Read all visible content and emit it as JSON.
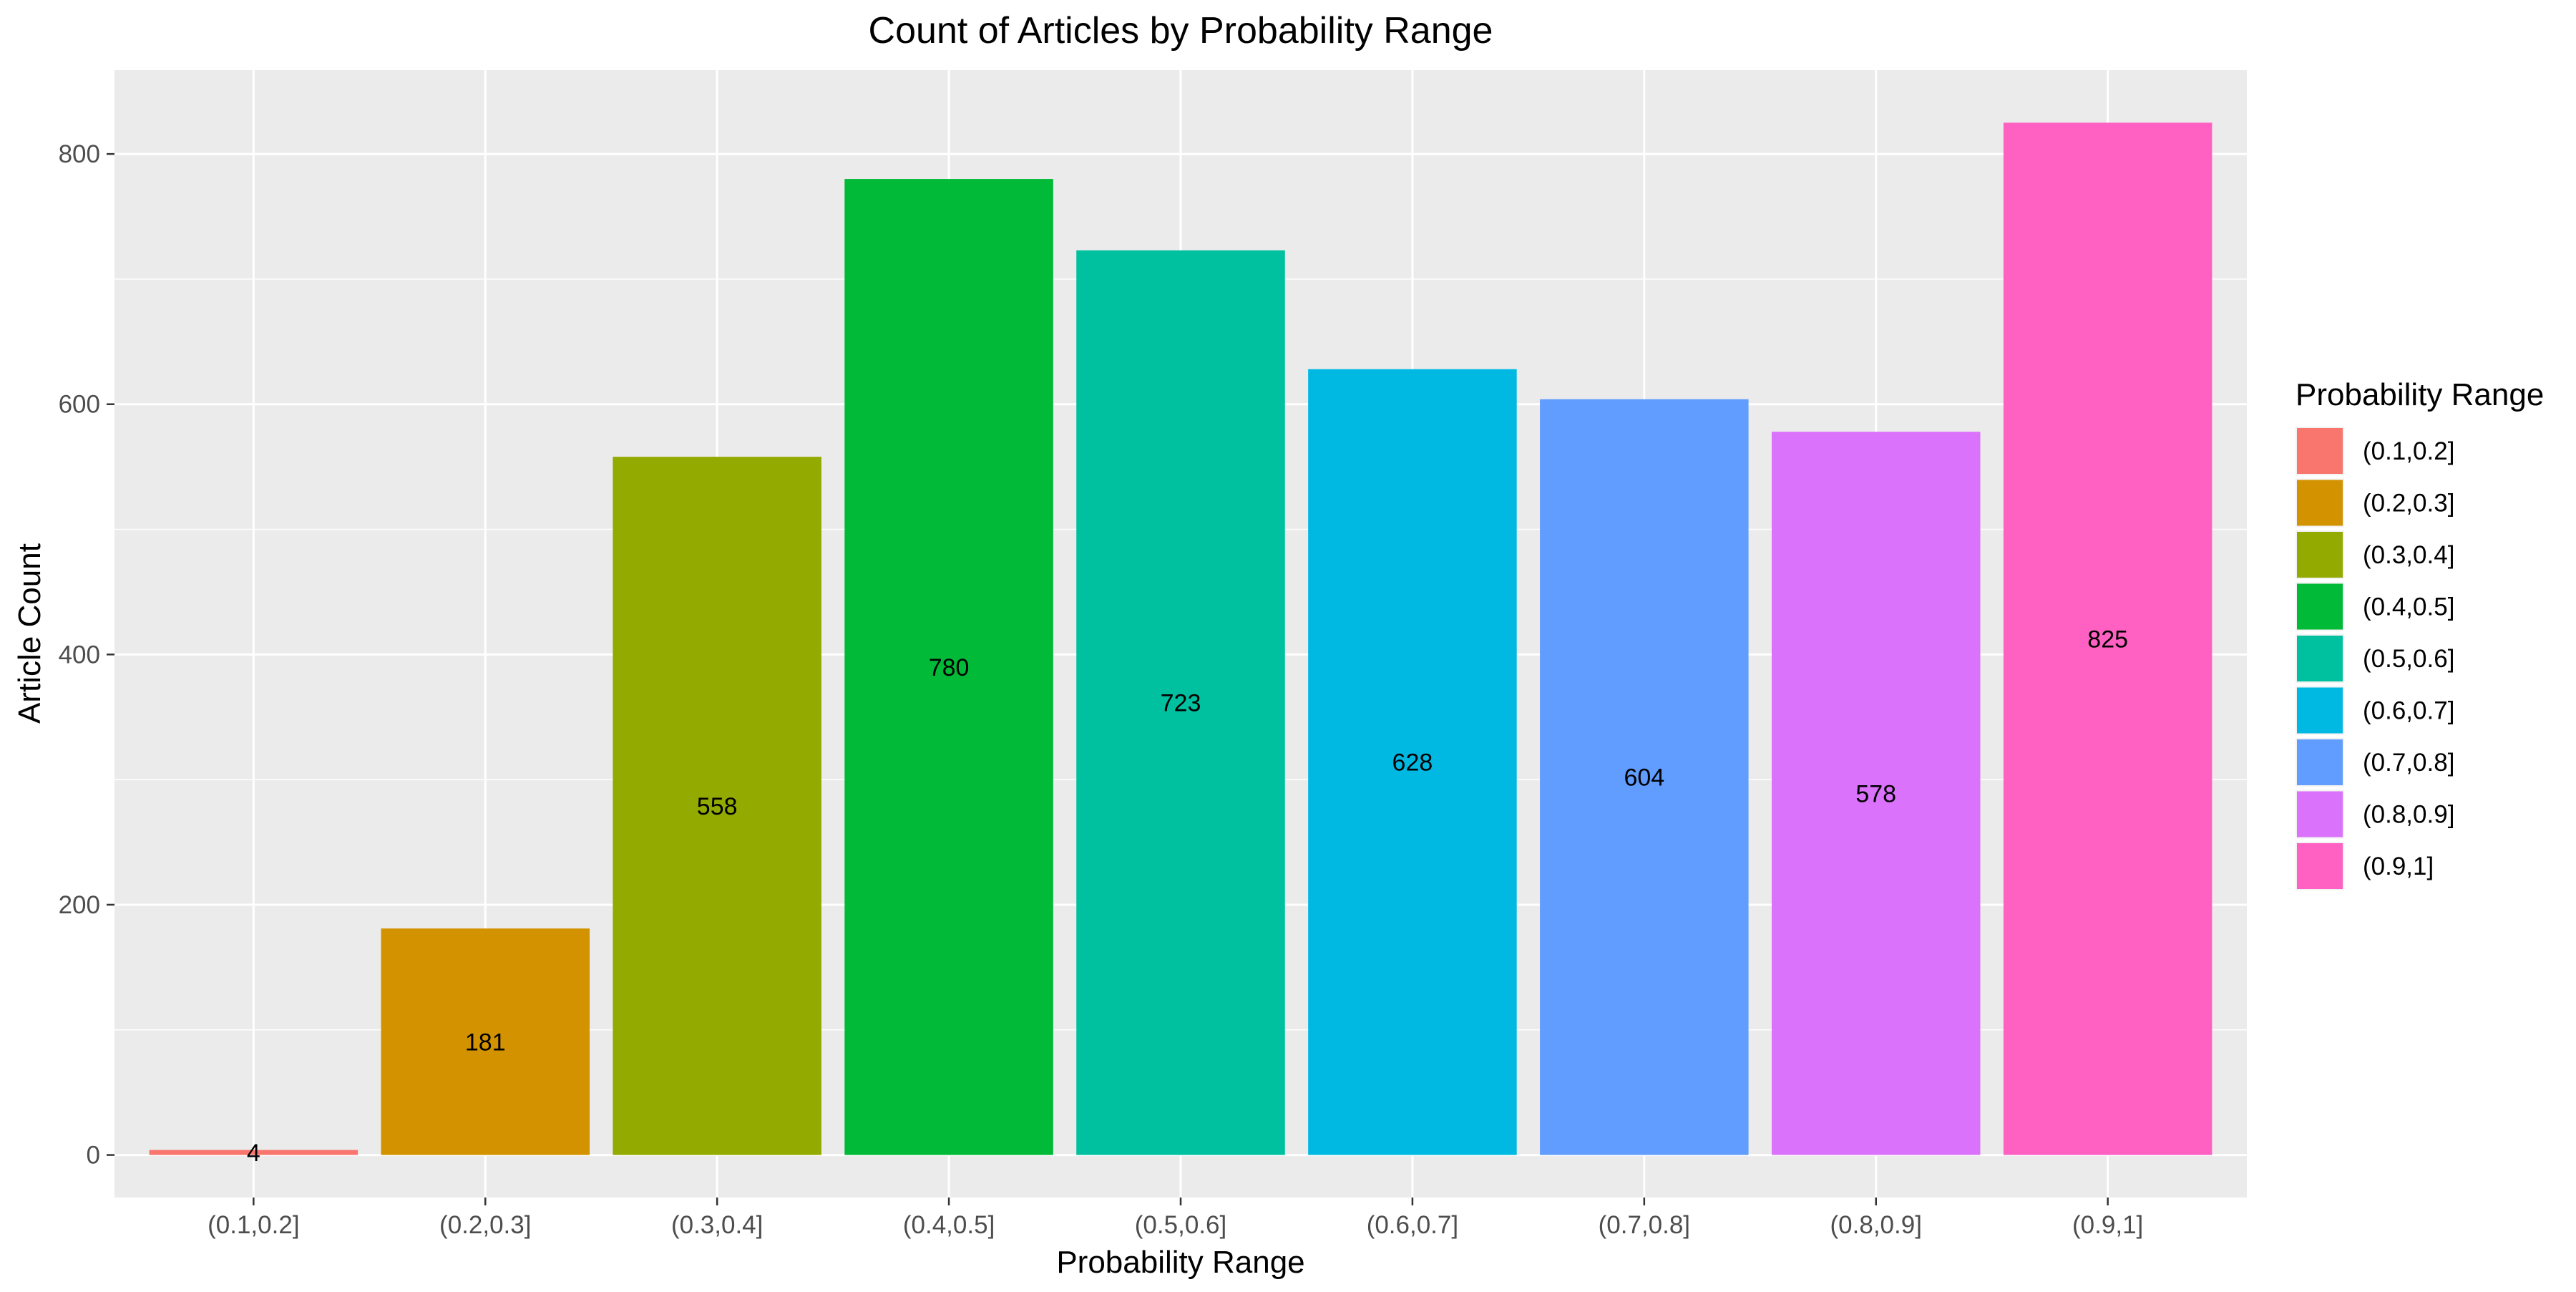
{
  "chart_data": {
    "type": "bar",
    "title": "Count of Articles by Probability Range",
    "xlabel": "Probability Range",
    "ylabel": "Article Count",
    "categories": [
      "(0.1,0.2]",
      "(0.2,0.3]",
      "(0.3,0.4]",
      "(0.4,0.5]",
      "(0.5,0.6]",
      "(0.6,0.7]",
      "(0.7,0.8]",
      "(0.8,0.9]",
      "(0.9,1]"
    ],
    "values": [
      4,
      181,
      558,
      780,
      723,
      628,
      604,
      578,
      825
    ],
    "colors": [
      "#F8766D",
      "#D39200",
      "#93AA00",
      "#00BA38",
      "#00C19F",
      "#00B9E3",
      "#619CFF",
      "#DB72FB",
      "#FF61C3"
    ],
    "data_labels": [
      "4",
      "181",
      "558",
      "780",
      "723",
      "628",
      "604",
      "578",
      "825"
    ],
    "ylim": [
      -34,
      867
    ],
    "yticks": [
      0,
      200,
      400,
      600,
      800
    ],
    "ytick_labels": [
      "0",
      "200",
      "400",
      "600",
      "800"
    ],
    "grid": true,
    "panel_background": "#EBEBEB",
    "legend": {
      "title": "Probability Range",
      "position": "right",
      "entries": [
        "(0.1,0.2]",
        "(0.2,0.3]",
        "(0.3,0.4]",
        "(0.4,0.5]",
        "(0.5,0.6]",
        "(0.6,0.7]",
        "(0.7,0.8]",
        "(0.8,0.9]",
        "(0.9,1]"
      ]
    }
  }
}
